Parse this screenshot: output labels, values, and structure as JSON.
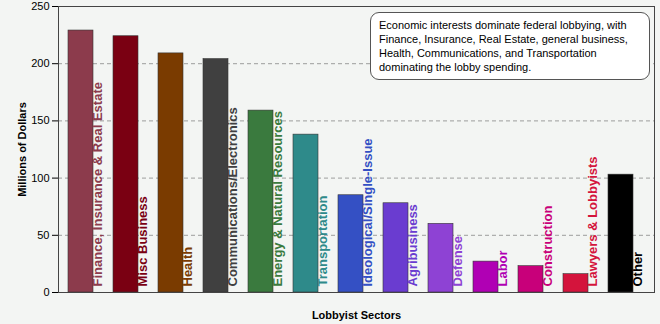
{
  "chart_data": {
    "type": "bar",
    "categories": [
      "Finance, Insurance & Real Estate",
      "Misc Business",
      "Health",
      "Communications/Electronics",
      "Energy & Natural Resources",
      "Transportation",
      "Ideological/Single-Issue",
      "Agribusiness",
      "Defense",
      "Labor",
      "Construction",
      "Lawyers & Lobbyists",
      "Other"
    ],
    "values": [
      229,
      224,
      209,
      204,
      159,
      138,
      85,
      78,
      60,
      27,
      23,
      16,
      103
    ],
    "colors": [
      "#8c3b4c",
      "#7a0012",
      "#7a3b00",
      "#404040",
      "#3a7a3e",
      "#2e8a8a",
      "#3450c4",
      "#6a3cd0",
      "#8e42d4",
      "#b000b4",
      "#c8007a",
      "#d4143c",
      "#000000"
    ],
    "xlabel": "Lobbyist Sectors",
    "ylabel": "Millions of Dollars",
    "annotations": [
      "Economic interests dominate federal lobbying, with Finance, Insurance, Real Estate, general business, Health, Communications, and Transportation dominating the lobby spending."
    ],
    "ylim": [
      0,
      250
    ],
    "yticks": [
      0,
      50,
      100,
      150,
      200,
      250
    ],
    "grid": true,
    "tick_labels": "y"
  }
}
